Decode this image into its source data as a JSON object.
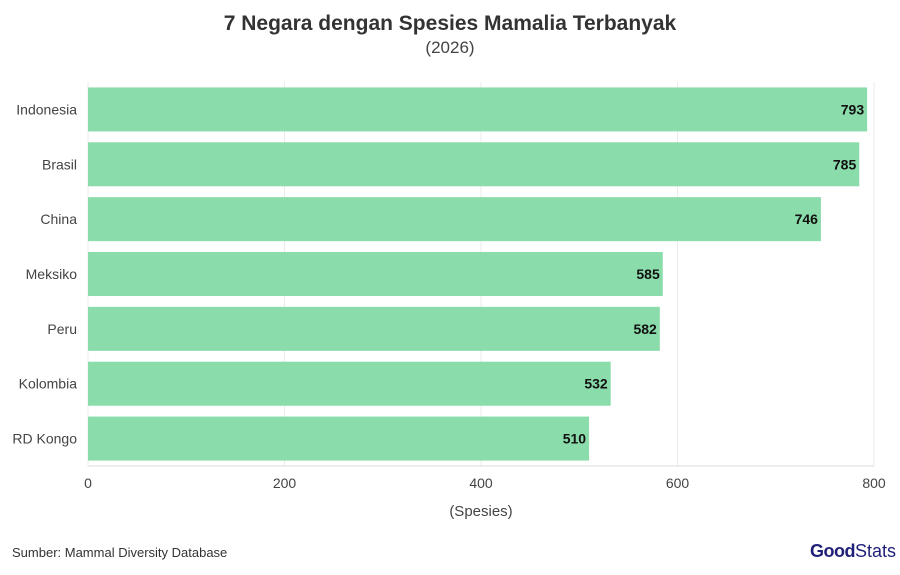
{
  "chart_data": {
    "type": "bar",
    "orientation": "horizontal",
    "title": "7 Negara dengan Spesies Mamalia Terbanyak",
    "subtitle": "(2026)",
    "xlabel": "(Spesies)",
    "ylabel": "",
    "categories": [
      "Indonesia",
      "Brasil",
      "China",
      "Meksiko",
      "Peru",
      "Kolombia",
      "RD Kongo"
    ],
    "values": [
      793,
      785,
      746,
      585,
      582,
      532,
      510
    ],
    "xlim": [
      0,
      800
    ],
    "xticks": [
      0,
      200,
      400,
      600,
      800
    ],
    "grid": true,
    "bar_color": "#8adcaa",
    "data_labels": true
  },
  "footer": {
    "source": "Sumber: Mammal Diversity Database",
    "logo_bold": "Good",
    "logo_light": "Stats"
  },
  "colors": {
    "logo": "#1f1f7a"
  }
}
